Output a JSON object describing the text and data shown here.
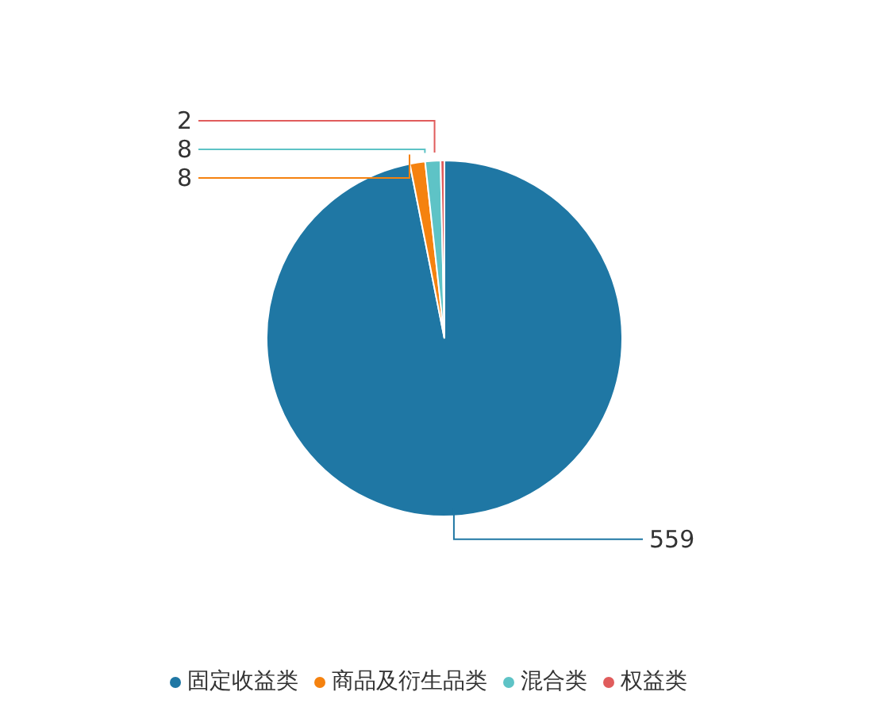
{
  "chart_data": {
    "type": "pie",
    "categories": [
      "固定收益类",
      "商品及衍生品类",
      "混合类",
      "权益类"
    ],
    "values": [
      559,
      8,
      8,
      2
    ],
    "colors": [
      "#1f77a4",
      "#f5820f",
      "#5ec3c6",
      "#e05c5c"
    ],
    "data_labels": true,
    "legend": "bottom"
  }
}
